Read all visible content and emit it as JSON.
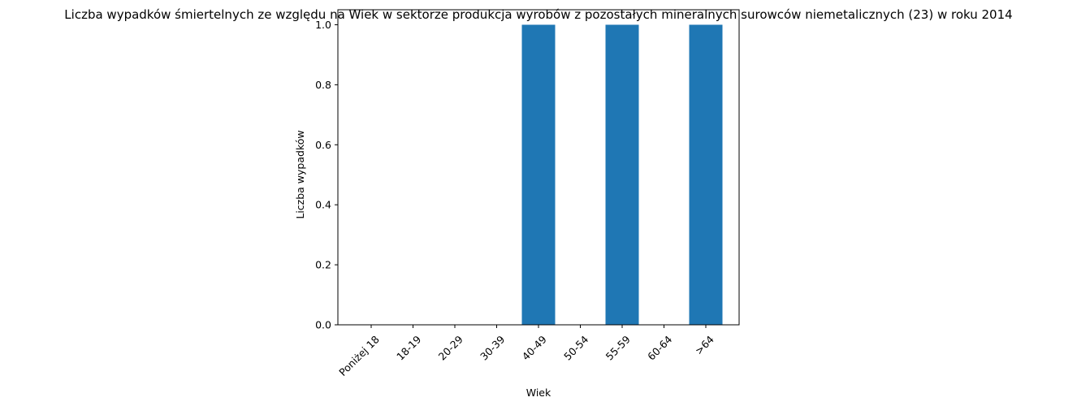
{
  "chart_data": {
    "type": "bar",
    "title": "Liczba wypadków śmiertelnych ze względu na Wiek w sektorze produkcja wyrobów z pozostałych mineralnych surowców niemetalicznych (23)  w roku 2014",
    "xlabel": "Wiek",
    "ylabel": "Liczba wypadków",
    "categories": [
      "Poniżej 18",
      "18-19",
      "20-29",
      "30-39",
      "40-49",
      "50-54",
      "55-59",
      "60-64",
      ">64"
    ],
    "values": [
      0,
      0,
      0,
      0,
      1,
      0,
      1,
      0,
      1
    ],
    "ylim": [
      0,
      1.05
    ],
    "yticks": [
      0.0,
      0.2,
      0.4,
      0.6,
      0.8,
      1.0
    ],
    "ytick_labels": [
      "0.0",
      "0.2",
      "0.4",
      "0.6",
      "0.8",
      "1.0"
    ],
    "bar_color": "#1f77b4",
    "grid": false,
    "legend": null
  }
}
